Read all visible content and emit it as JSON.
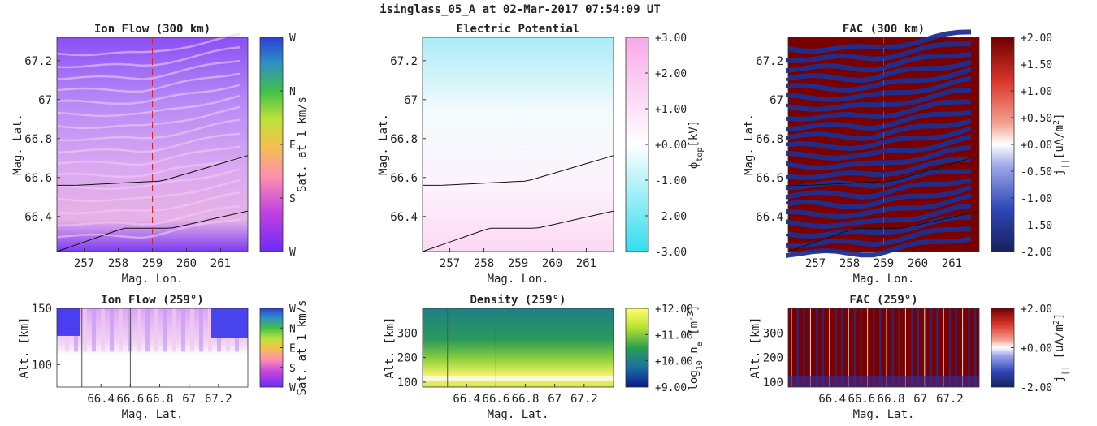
{
  "title": "isinglass_05_A at 02-Mar-2017 07:54:09 UT",
  "colors": {
    "blue": "#2b3fd6",
    "purple": "#6f3cf2",
    "white": "#ffffff",
    "cyan": "#33ddee",
    "pink": "#f8b7ec",
    "dkred": "#7a0000",
    "dkblue": "#1f2f8f",
    "yellow": "#ffff55",
    "green": "#2d9b4e"
  },
  "chart_data": [
    {
      "type": "heatmap",
      "title": "Ion Flow (300 km)",
      "xlabel": "Mag. Lon.",
      "ylabel": "Mag. Lat.",
      "xlim": [
        256.2,
        261.8
      ],
      "ylim": [
        66.22,
        67.32
      ],
      "xticks": [
        "257",
        "258",
        "259",
        "260",
        "261"
      ],
      "yticks": [
        "66.4",
        "66.6",
        "66.8",
        "67",
        "67.2"
      ],
      "marker_lon": 259,
      "colorbar": {
        "label": "Sat. at 1 km/s",
        "ticks": [
          "W",
          "S",
          "E",
          "N",
          "W"
        ]
      }
    },
    {
      "type": "heatmap",
      "title": "Electric Potential",
      "xlabel": "Mag. Lon.",
      "ylabel": "Mag. Lat.",
      "xlim": [
        256.2,
        261.8
      ],
      "ylim": [
        66.22,
        67.32
      ],
      "xticks": [
        "257",
        "258",
        "259",
        "260",
        "261"
      ],
      "yticks": [
        "66.4",
        "66.6",
        "66.8",
        "67",
        "67.2"
      ],
      "colorbar": {
        "label": "φtop [kV]",
        "label_main": "ϕ",
        "label_sub": "top",
        "label_unit": "[kV]",
        "range": [
          -3,
          3
        ],
        "ticks": [
          "-3.00",
          "-2.00",
          "-1.00",
          "+0.00",
          "+1.00",
          "+2.00",
          "+3.00"
        ]
      }
    },
    {
      "type": "heatmap",
      "title": "FAC (300 km)",
      "xlabel": "Mag. Lon.",
      "ylabel": "Mag. Lat.",
      "xlim": [
        256.2,
        261.8
      ],
      "ylim": [
        66.22,
        67.32
      ],
      "xticks": [
        "257",
        "258",
        "259",
        "260",
        "261"
      ],
      "yticks": [
        "66.4",
        "66.6",
        "66.8",
        "67",
        "67.2"
      ],
      "marker_lon": 259,
      "colorbar": {
        "label": "j|| [uA/m2]",
        "label_main": "j",
        "label_sub": "||",
        "label_unit": "[uA/m",
        "label_sup": "2",
        "label_end": "]",
        "range": [
          -2,
          2
        ],
        "ticks": [
          "-2.00",
          "-1.50",
          "-1.00",
          "-0.50",
          "+0.00",
          "+0.50",
          "+1.00",
          "+1.50",
          "+2.00"
        ]
      }
    },
    {
      "type": "heatmap",
      "title": "Ion Flow (259°)",
      "xlabel": "Mag. Lat.",
      "ylabel": "Alt. [km]",
      "xlim": [
        66.1,
        67.4
      ],
      "ylim": [
        80,
        150
      ],
      "xticks": [
        "66.4",
        "66.6",
        "66.8",
        "67",
        "67.2"
      ],
      "yticks": [
        "100",
        "150"
      ],
      "colorbar": {
        "label": "Sat. at 1 km/s",
        "ticks": [
          "W",
          "S",
          "E",
          "N",
          "W"
        ]
      }
    },
    {
      "type": "heatmap",
      "title": "Density (259°)",
      "xlabel": "Mag. Lat.",
      "ylabel": "Alt. [km]",
      "xlim": [
        66.1,
        67.4
      ],
      "ylim": [
        80,
        400
      ],
      "xticks": [
        "66.4",
        "66.6",
        "66.8",
        "67",
        "67.2"
      ],
      "yticks": [
        "100",
        "200",
        "300"
      ],
      "colorbar": {
        "label": "log10 ne [m-3]",
        "label_main": "log",
        "label_sub": "10",
        "label_mid": " n",
        "label_sub2": "e",
        "label_unit": " [m",
        "label_sup": "-3",
        "label_end": "]",
        "range": [
          9,
          12
        ],
        "ticks": [
          "+9.00",
          "+10.00",
          "+11.00",
          "+12.00"
        ]
      }
    },
    {
      "type": "heatmap",
      "title": "FAC (259°)",
      "xlabel": "Mag. Lat.",
      "ylabel": "Alt. [km]",
      "xlim": [
        66.1,
        67.4
      ],
      "ylim": [
        80,
        400
      ],
      "xticks": [
        "66.4",
        "66.6",
        "66.8",
        "67",
        "67.2"
      ],
      "yticks": [
        "100",
        "200",
        "300"
      ],
      "colorbar": {
        "label": "j|| [uA/m2]",
        "label_main": "j",
        "label_sub": "||",
        "label_unit": " [uA/m",
        "label_sup": "2",
        "label_end": "]",
        "range": [
          -2,
          2
        ],
        "ticks": [
          "-2.00",
          "+0.00",
          "+2.00"
        ]
      }
    }
  ]
}
